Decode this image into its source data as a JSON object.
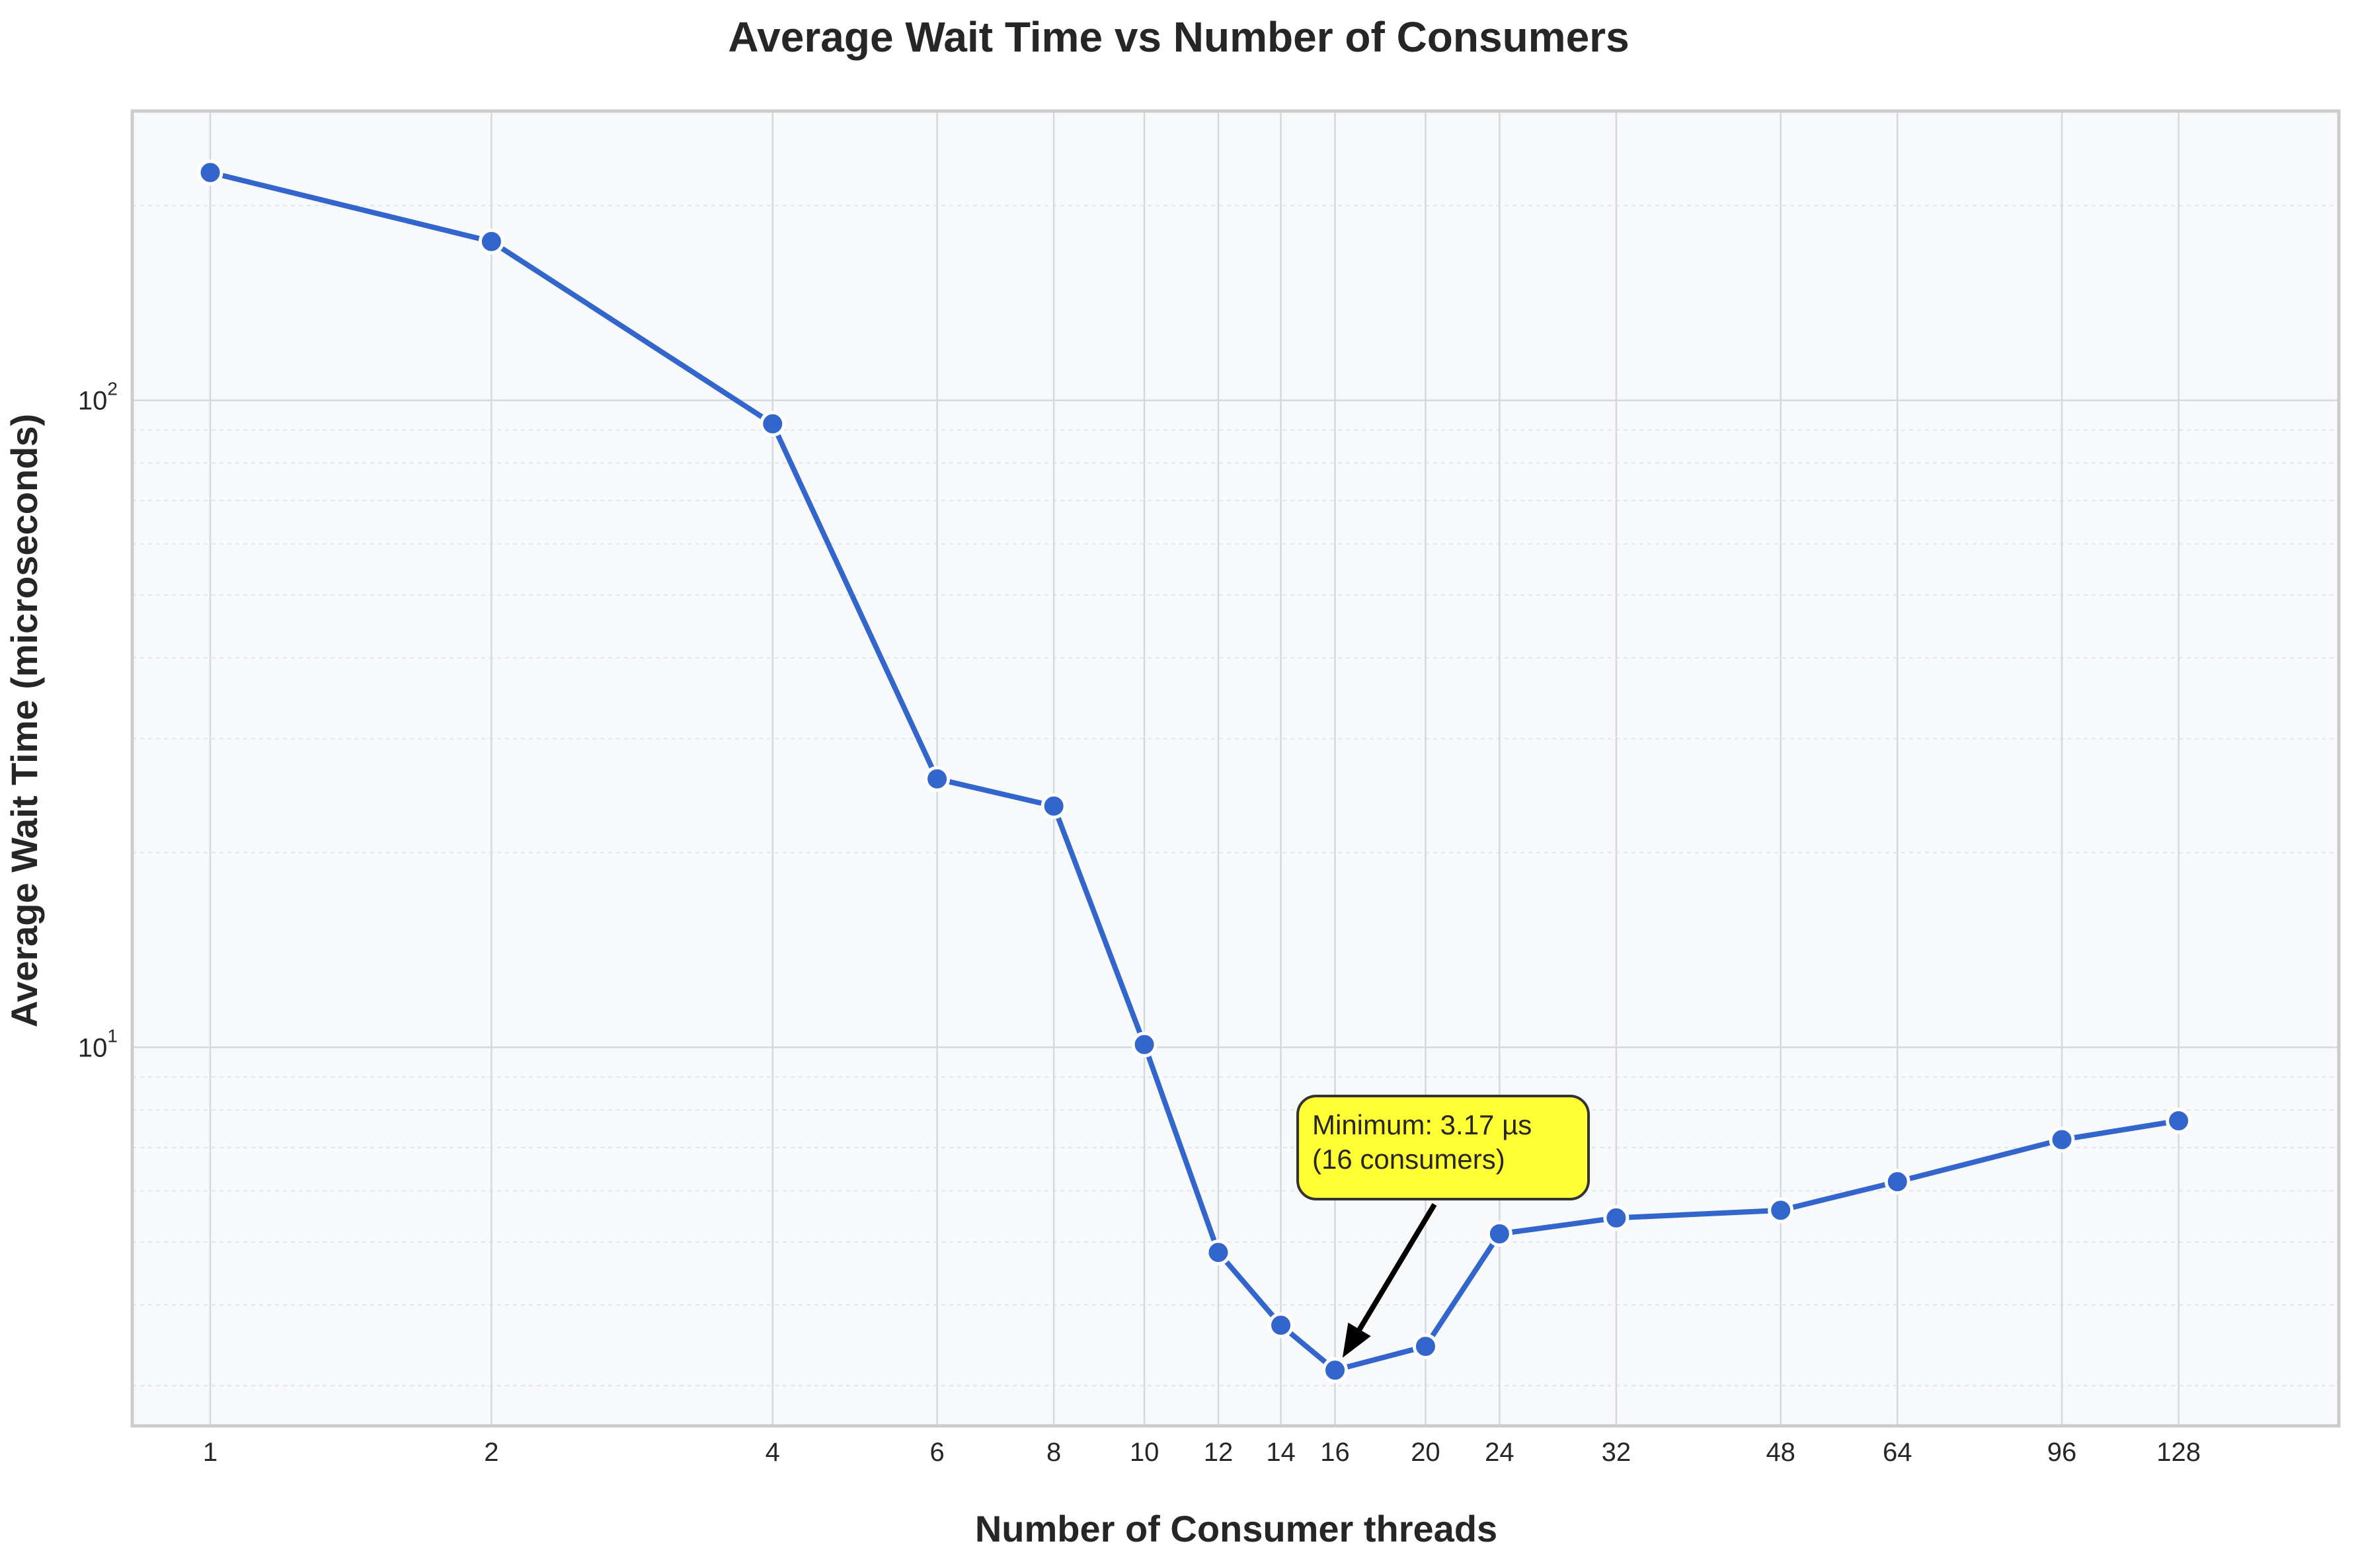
{
  "chart_data": {
    "type": "line",
    "title": "Average Wait Time vs Number of Consumers",
    "xlabel": "Number of Consumer threads",
    "ylabel": "Average Wait Time (microseconds)",
    "x_scale": "log",
    "y_scale": "log",
    "xlim": [
      0.825,
      190
    ],
    "ylim": [
      2.6,
      280
    ],
    "x_ticks": [
      1,
      2,
      4,
      6,
      8,
      10,
      12,
      14,
      16,
      20,
      24,
      32,
      48,
      64,
      96,
      128
    ],
    "y_ticks": [
      10,
      100
    ],
    "y_tick_labels": [
      {
        "base": "10",
        "exp": "1"
      },
      {
        "base": "10",
        "exp": "2"
      }
    ],
    "grid": true,
    "series": [
      {
        "color": "#3366cc",
        "x": [
          1,
          2,
          4,
          6,
          8,
          10,
          12,
          14,
          16,
          20,
          24,
          32,
          48,
          64,
          96,
          128
        ],
        "y": [
          225,
          176,
          92,
          26,
          23.6,
          10.1,
          4.82,
          3.72,
          3.17,
          3.45,
          5.15,
          5.45,
          5.6,
          6.2,
          7.2,
          7.7
        ]
      }
    ],
    "annotation": {
      "lines": [
        "Minimum: 3.17 µs",
        "(16 consumers)"
      ],
      "target": {
        "x": 16,
        "y": 3.17
      },
      "box_color": "#ffff33"
    }
  }
}
